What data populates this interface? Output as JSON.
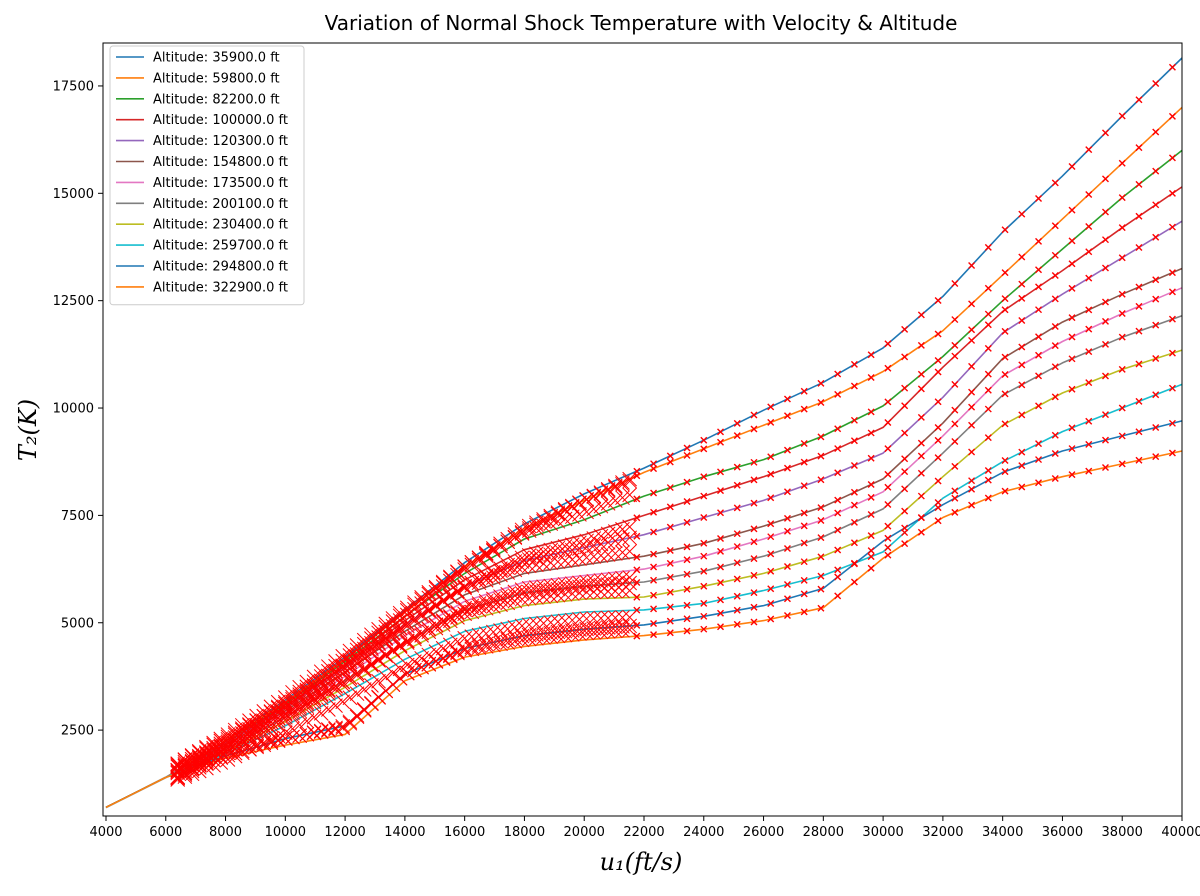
{
  "chart_data": {
    "type": "line",
    "title": "Variation of Normal Shock Temperature with Velocity & Altitude",
    "xlabel": "u₁(ft/s)",
    "ylabel": "T₂(K)",
    "xlim": [
      3900,
      40000
    ],
    "ylim": [
      500,
      18500
    ],
    "xticks": [
      4000,
      6000,
      8000,
      10000,
      12000,
      14000,
      16000,
      18000,
      20000,
      22000,
      24000,
      26000,
      28000,
      30000,
      32000,
      34000,
      36000,
      38000,
      40000
    ],
    "yticks": [
      2500,
      5000,
      7500,
      10000,
      12500,
      15000,
      17500
    ],
    "grid": false,
    "legend_position": "upper-left",
    "series": [
      {
        "name": "Altitude: 35900.0 ft",
        "color": "#1f77b4",
        "x": [
          4000,
          6000,
          8000,
          10000,
          12000,
          14000,
          16000,
          18000,
          20000,
          22000,
          24000,
          26000,
          28000,
          30000,
          32000,
          34000,
          36000,
          38000,
          40000
        ],
        "y": [
          700,
          1400,
          2250,
          3200,
          4200,
          5300,
          6400,
          7300,
          8000,
          8600,
          9250,
          9950,
          10600,
          11400,
          12600,
          14100,
          15400,
          16800,
          18150
        ]
      },
      {
        "name": "Altitude: 59800.0 ft",
        "color": "#ff7f0e",
        "x": [
          4000,
          6000,
          8000,
          10000,
          12000,
          14000,
          16000,
          18000,
          20000,
          22000,
          24000,
          26000,
          28000,
          30000,
          32000,
          34000,
          36000,
          38000,
          40000
        ],
        "y": [
          700,
          1400,
          2250,
          3150,
          4150,
          5250,
          6300,
          7200,
          7850,
          8500,
          9050,
          9600,
          10150,
          10850,
          11800,
          13100,
          14400,
          15700,
          17000
        ]
      },
      {
        "name": "Altitude: 82200.0 ft",
        "color": "#2ca02c",
        "x": [
          4000,
          6000,
          8000,
          10000,
          12000,
          14000,
          16000,
          18000,
          20000,
          22000,
          24000,
          26000,
          28000,
          30000,
          32000,
          34000,
          36000,
          38000,
          40000
        ],
        "y": [
          700,
          1400,
          2200,
          3100,
          4100,
          5150,
          6150,
          6950,
          7400,
          7950,
          8400,
          8800,
          9350,
          10050,
          11200,
          12500,
          13700,
          14900,
          16000
        ]
      },
      {
        "name": "Altitude: 100000.0 ft",
        "color": "#d62728",
        "x": [
          4000,
          6000,
          8000,
          10000,
          12000,
          14000,
          16000,
          18000,
          20000,
          22000,
          24000,
          26000,
          28000,
          30000,
          32000,
          34000,
          36000,
          38000,
          40000
        ],
        "y": [
          700,
          1400,
          2200,
          3050,
          4000,
          5050,
          6000,
          6700,
          7050,
          7500,
          7950,
          8400,
          8900,
          9550,
          10950,
          12250,
          13200,
          14200,
          15150
        ]
      },
      {
        "name": "Altitude: 120300.0 ft",
        "color": "#9467bd",
        "x": [
          4000,
          6000,
          8000,
          10000,
          12000,
          14000,
          16000,
          18000,
          20000,
          22000,
          24000,
          26000,
          28000,
          30000,
          32000,
          34000,
          36000,
          38000,
          40000
        ],
        "y": [
          700,
          1400,
          2200,
          3000,
          3950,
          4950,
          5850,
          6450,
          6750,
          7050,
          7450,
          7850,
          8350,
          8950,
          10250,
          11750,
          12650,
          13500,
          14350
        ]
      },
      {
        "name": "Altitude: 154800.0 ft",
        "color": "#8c564b",
        "x": [
          4000,
          6000,
          8000,
          10000,
          12000,
          14000,
          16000,
          18000,
          20000,
          22000,
          24000,
          26000,
          28000,
          30000,
          32000,
          34000,
          36000,
          38000,
          40000
        ],
        "y": [
          700,
          1400,
          2150,
          2950,
          3850,
          4800,
          5650,
          6150,
          6350,
          6550,
          6850,
          7250,
          7700,
          8350,
          9650,
          11150,
          12000,
          12650,
          13250
        ]
      },
      {
        "name": "Altitude: 173500.0 ft",
        "color": "#e377c2",
        "x": [
          4000,
          6000,
          8000,
          10000,
          12000,
          14000,
          16000,
          18000,
          20000,
          22000,
          24000,
          26000,
          28000,
          30000,
          32000,
          34000,
          36000,
          38000,
          40000
        ],
        "y": [
          700,
          1400,
          2100,
          2900,
          3750,
          4700,
          5500,
          5950,
          6100,
          6250,
          6550,
          6950,
          7400,
          8050,
          9350,
          10750,
          11550,
          12200,
          12800
        ]
      },
      {
        "name": "Altitude: 200100.0 ft",
        "color": "#7f7f7f",
        "x": [
          4000,
          6000,
          8000,
          10000,
          12000,
          14000,
          16000,
          18000,
          20000,
          22000,
          24000,
          26000,
          28000,
          30000,
          32000,
          34000,
          36000,
          38000,
          40000
        ],
        "y": [
          700,
          1400,
          2050,
          2800,
          3650,
          4550,
          5300,
          5700,
          5850,
          5950,
          6200,
          6550,
          7000,
          7650,
          8950,
          10300,
          11050,
          11650,
          12150
        ]
      },
      {
        "name": "Altitude: 230400.0 ft",
        "color": "#bcbd22",
        "x": [
          4000,
          6000,
          8000,
          10000,
          12000,
          14000,
          16000,
          18000,
          20000,
          22000,
          24000,
          26000,
          28000,
          30000,
          32000,
          34000,
          36000,
          38000,
          40000
        ],
        "y": [
          700,
          1400,
          2000,
          2700,
          3500,
          4350,
          5050,
          5400,
          5550,
          5600,
          5850,
          6150,
          6550,
          7150,
          8400,
          9600,
          10350,
          10900,
          11350
        ]
      },
      {
        "name": "Altitude: 259700.0 ft",
        "color": "#17becf",
        "x": [
          4000,
          6000,
          8000,
          10000,
          12000,
          14000,
          16000,
          18000,
          20000,
          22000,
          24000,
          26000,
          28000,
          30000,
          32000,
          34000,
          36000,
          38000,
          40000
        ],
        "y": [
          700,
          1400,
          1950,
          2600,
          3350,
          4150,
          4800,
          5100,
          5250,
          5300,
          5450,
          5750,
          6100,
          6650,
          7900,
          8750,
          9450,
          10000,
          10550
        ]
      },
      {
        "name": "Altitude: 294800.0 ft",
        "color": "#1f77b4",
        "x": [
          4000,
          6000,
          8000,
          10000,
          12000,
          14000,
          16000,
          18000,
          20000,
          22000,
          24000,
          26000,
          28000,
          30000,
          32000,
          34000,
          36000,
          38000,
          40000
        ],
        "y": [
          700,
          1400,
          1900,
          2300,
          2600,
          3800,
          4400,
          4700,
          4850,
          4950,
          5150,
          5400,
          5800,
          6900,
          7750,
          8500,
          9000,
          9350,
          9700
        ]
      },
      {
        "name": "Altitude: 322900.0 ft",
        "color": "#ff7f0e",
        "x": [
          4000,
          6000,
          8000,
          10000,
          12000,
          14000,
          16000,
          18000,
          20000,
          22000,
          24000,
          26000,
          28000,
          30000,
          32000,
          34000,
          36000,
          38000,
          40000
        ],
        "y": [
          700,
          1400,
          1850,
          2150,
          2400,
          3650,
          4200,
          4450,
          4600,
          4700,
          4850,
          5050,
          5350,
          6500,
          7450,
          8050,
          8400,
          8700,
          9000
        ]
      }
    ],
    "markers": {
      "color": "#ff0000",
      "shape": "x"
    }
  }
}
